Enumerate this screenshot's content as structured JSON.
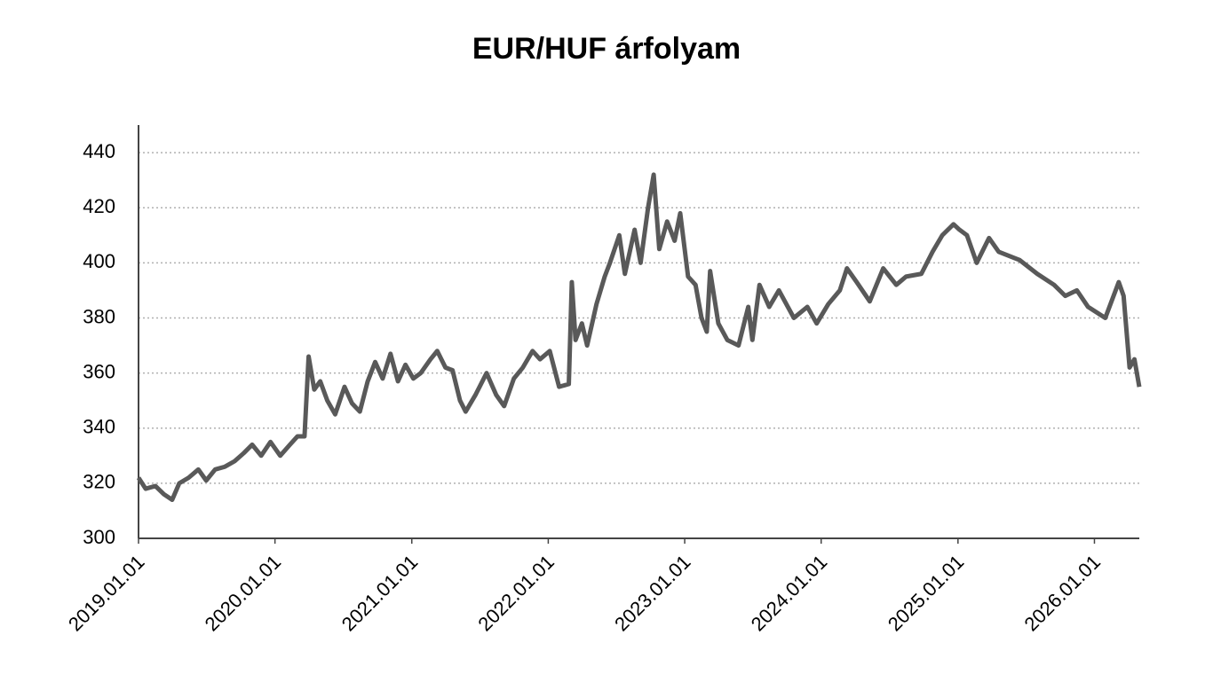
{
  "chart_data": {
    "type": "line",
    "title": "EUR/HUF árfolyam",
    "x": [
      "2019.01.01",
      "2019.01.20",
      "2019.02.15",
      "2019.03.10",
      "2019.04.01",
      "2019.04.20",
      "2019.05.15",
      "2019.06.10",
      "2019.07.01",
      "2019.07.25",
      "2019.08.20",
      "2019.09.15",
      "2019.10.10",
      "2019.11.01",
      "2019.11.25",
      "2019.12.20",
      "2020.01.15",
      "2020.02.10",
      "2020.03.01",
      "2020.03.20",
      "2020.03.31",
      "2020.04.15",
      "2020.05.01",
      "2020.05.20",
      "2020.06.10",
      "2020.07.05",
      "2020.07.25",
      "2020.08.15",
      "2020.09.05",
      "2020.09.25",
      "2020.10.15",
      "2020.11.05",
      "2020.11.25",
      "2020.12.15",
      "2021.01.05",
      "2021.01.25",
      "2021.02.20",
      "2021.03.10",
      "2021.04.01",
      "2021.04.20",
      "2021.05.10",
      "2021.05.25",
      "2021.06.20",
      "2021.07.20",
      "2021.08.15",
      "2021.09.05",
      "2021.10.01",
      "2021.10.25",
      "2021.11.20",
      "2021.12.10",
      "2022.01.05",
      "2022.01.30",
      "2022.02.25",
      "2022.03.05",
      "2022.03.15",
      "2022.04.01",
      "2022.04.15",
      "2022.05.10",
      "2022.06.01",
      "2022.06.15",
      "2022.07.10",
      "2022.07.25",
      "2022.08.20",
      "2022.09.05",
      "2022.09.25",
      "2022.10.10",
      "2022.10.25",
      "2022.11.15",
      "2022.12.05",
      "2022.12.20",
      "2023.01.10",
      "2023.01.30",
      "2023.02.15",
      "2023.03.01",
      "2023.03.10",
      "2023.04.01",
      "2023.04.25",
      "2023.05.25",
      "2023.06.20",
      "2023.07.01",
      "2023.07.20",
      "2023.08.15",
      "2023.09.10",
      "2023.10.20",
      "2023.11.25",
      "2023.12.20",
      "2024.01.20",
      "2024.02.20",
      "2024.03.10",
      "2024.04.05",
      "2024.05.10",
      "2024.06.15",
      "2024.07.20",
      "2024.08.15",
      "2024.09.25",
      "2024.10.25",
      "2024.11.20",
      "2024.12.20",
      "2025.01.05",
      "2025.01.25",
      "2025.02.20",
      "2025.03.25",
      "2025.04.20",
      "2025.06.15",
      "2025.08.01",
      "2025.09.15",
      "2025.10.15",
      "2025.11.15",
      "2025.12.15",
      "2026.01.30",
      "2026.03.07",
      "2026.03.20",
      "2026.04.05",
      "2026.04.18",
      "2026.05.01"
    ],
    "series": [
      {
        "color": "#595959",
        "values": [
          322,
          318,
          319,
          316,
          314,
          320,
          322,
          325,
          321,
          325,
          326,
          328,
          331,
          334,
          330,
          335,
          330,
          334,
          337,
          337,
          366,
          354,
          357,
          350,
          345,
          355,
          349,
          346,
          357,
          364,
          358,
          367,
          357,
          363,
          358,
          360,
          365,
          368,
          362,
          361,
          350,
          346,
          352,
          360,
          352,
          348,
          358,
          362,
          368,
          365,
          368,
          355,
          356,
          393,
          372,
          378,
          370,
          385,
          395,
          400,
          410,
          396,
          412,
          400,
          420,
          432,
          405,
          415,
          408,
          418,
          395,
          392,
          380,
          375,
          397,
          378,
          372,
          370,
          384,
          372,
          392,
          384,
          390,
          380,
          384,
          378,
          385,
          390,
          398,
          393,
          386,
          398,
          392,
          395,
          396,
          404,
          410,
          414,
          412,
          410,
          400,
          409,
          404,
          401,
          396,
          392,
          388,
          390,
          384,
          380,
          393,
          388,
          362,
          365,
          355
        ]
      }
    ],
    "xlim": [
      "2019.01.01",
      "2026.05.01"
    ],
    "xticks": [
      "2019.01.01",
      "2020.01.01",
      "2021.01.01",
      "2022.01.01",
      "2023.01.01",
      "2024.01.01",
      "2025.01.01",
      "2026.01.01"
    ],
    "ylim": [
      300,
      450
    ],
    "yticks": [
      300,
      320,
      340,
      360,
      380,
      400,
      420,
      440
    ],
    "grid": true
  }
}
